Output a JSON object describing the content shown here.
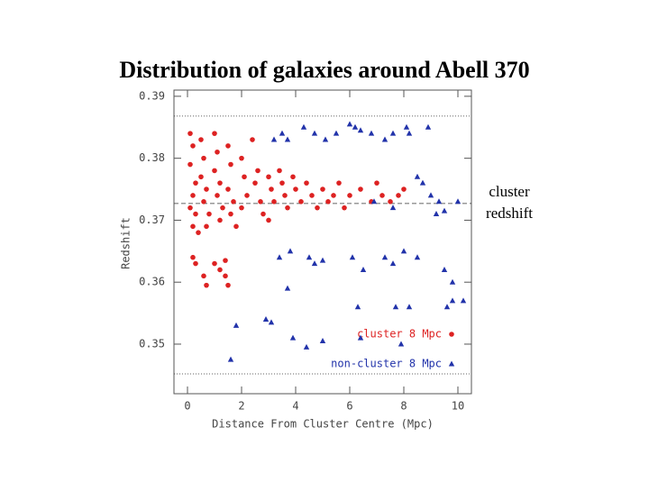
{
  "chart_data": {
    "type": "scatter",
    "title": "Distribution of galaxies around Abell 370",
    "x_label": "Distance From Cluster Centre (Mpc)",
    "y_label": "Redshift",
    "annotation": "cluster redshift",
    "xlim": [
      -0.5,
      10.5
    ],
    "ylim": [
      0.342,
      0.391
    ],
    "xticks": [
      0,
      2,
      4,
      6,
      8,
      10
    ],
    "yticks": [
      0.35,
      0.36,
      0.37,
      0.38,
      0.39
    ],
    "reference_lines": [
      {
        "value": 0.3868,
        "style": "dotted"
      },
      {
        "value": 0.3727,
        "style": "dashed"
      },
      {
        "value": 0.3452,
        "style": "dotted"
      }
    ],
    "series": [
      {
        "name": "cluster 8 Mpc",
        "color": "#dd2222",
        "marker": "circle",
        "x": [
          0.1,
          0.2,
          0.1,
          0.3,
          0.2,
          0.1,
          0.3,
          0.2,
          0.4,
          0.5,
          0.6,
          0.5,
          0.7,
          0.6,
          0.8,
          0.7,
          1.0,
          1.1,
          1.0,
          1.2,
          1.1,
          1.3,
          1.2,
          1.5,
          1.6,
          1.5,
          1.7,
          1.6,
          1.8,
          2.0,
          2.1,
          2.2,
          2.0,
          2.4,
          2.6,
          2.5,
          2.7,
          2.8,
          3.0,
          3.1,
          3.2,
          3.0,
          3.4,
          3.5,
          3.6,
          3.7,
          3.9,
          4.0,
          4.2,
          4.4,
          4.6,
          4.8,
          5.0,
          5.2,
          5.4,
          5.6,
          5.8,
          6.0,
          6.4,
          6.8,
          7.0,
          7.2,
          7.5,
          7.8,
          8.0,
          0.2,
          0.3,
          0.6,
          0.7,
          1.0,
          1.2,
          1.4,
          1.5,
          1.4
        ],
        "values": [
          0.384,
          0.382,
          0.379,
          0.376,
          0.374,
          0.372,
          0.371,
          0.369,
          0.368,
          0.383,
          0.38,
          0.377,
          0.375,
          0.373,
          0.371,
          0.369,
          0.384,
          0.381,
          0.378,
          0.376,
          0.374,
          0.372,
          0.37,
          0.382,
          0.379,
          0.375,
          0.373,
          0.371,
          0.369,
          0.38,
          0.377,
          0.374,
          0.372,
          0.383,
          0.378,
          0.376,
          0.373,
          0.371,
          0.377,
          0.375,
          0.373,
          0.37,
          0.378,
          0.376,
          0.374,
          0.372,
          0.377,
          0.375,
          0.373,
          0.376,
          0.374,
          0.372,
          0.375,
          0.373,
          0.374,
          0.376,
          0.372,
          0.374,
          0.375,
          0.373,
          0.376,
          0.374,
          0.373,
          0.374,
          0.375,
          0.364,
          0.363,
          0.361,
          0.3595,
          0.363,
          0.362,
          0.361,
          0.3595,
          0.3635
        ]
      },
      {
        "name": "non-cluster 8 Mpc",
        "color": "#2233aa",
        "marker": "triangle",
        "x": [
          3.2,
          3.5,
          3.7,
          4.3,
          4.7,
          5.1,
          5.5,
          6.0,
          6.2,
          6.4,
          6.8,
          7.3,
          7.6,
          8.1,
          8.2,
          8.9,
          8.5,
          8.7,
          9.0,
          9.3,
          9.5,
          10.0,
          6.9,
          7.6,
          9.2,
          3.4,
          3.8,
          4.5,
          4.7,
          5.0,
          6.1,
          6.5,
          7.3,
          7.6,
          8.0,
          8.5,
          9.5,
          9.8,
          3.7,
          6.3,
          7.7,
          8.2,
          9.6,
          9.8,
          10.2,
          2.9,
          3.1,
          1.8,
          3.9,
          5.0,
          6.4,
          7.9,
          1.6,
          4.4
        ],
        "values": [
          0.383,
          0.384,
          0.383,
          0.385,
          0.384,
          0.383,
          0.384,
          0.3855,
          0.385,
          0.3845,
          0.384,
          0.383,
          0.384,
          0.385,
          0.384,
          0.385,
          0.377,
          0.376,
          0.374,
          0.373,
          0.3715,
          0.373,
          0.373,
          0.372,
          0.371,
          0.364,
          0.365,
          0.364,
          0.363,
          0.3635,
          0.364,
          0.362,
          0.364,
          0.363,
          0.365,
          0.364,
          0.362,
          0.36,
          0.359,
          0.356,
          0.356,
          0.356,
          0.356,
          0.357,
          0.357,
          0.354,
          0.3535,
          0.353,
          0.351,
          0.3505,
          0.351,
          0.35,
          0.3475,
          0.3495
        ]
      }
    ]
  }
}
